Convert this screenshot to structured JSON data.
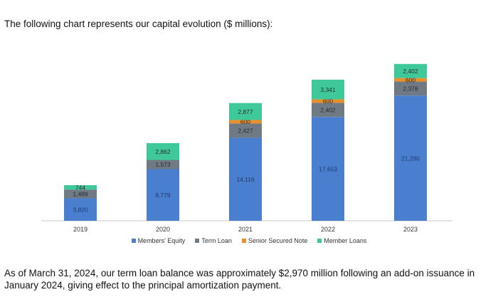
{
  "intro_text": "The following chart represents our capital evolution ($ millions):",
  "footnote_text": "As of March 31, 2024, our term loan balance was approximately $2,970 million following an add-on issuance in January 2024, giving effect to the principal amortization payment.",
  "chart_data": {
    "type": "bar",
    "stacked": true,
    "title": "",
    "xlabel": "",
    "ylabel": "",
    "categories": [
      "2019",
      "2020",
      "2021",
      "2022",
      "2023"
    ],
    "series": [
      {
        "name": "Members' Equity",
        "color": "#4a7fd0",
        "values": [
          3820,
          8779,
          14116,
          17653,
          21290
        ],
        "labels": [
          "3,820",
          "8,779",
          "14,116",
          "17,653",
          "21,290"
        ]
      },
      {
        "name": "Term Loan",
        "color": "#707a85",
        "values": [
          1489,
          1573,
          2427,
          2402,
          2378
        ],
        "labels": [
          "1,489",
          "1,573",
          "2,427",
          "2,402",
          "2,378"
        ]
      },
      {
        "name": "Senior Secured Note",
        "color": "#e8902c",
        "values": [
          0,
          0,
          600,
          600,
          600
        ],
        "labels": [
          "",
          "",
          "600",
          "600",
          "600"
        ]
      },
      {
        "name": "Member Loans",
        "color": "#3fc99b",
        "values": [
          744,
          2862,
          2877,
          3341,
          2402
        ],
        "labels": [
          "744",
          "2,862",
          "2,877",
          "3,341",
          "2,402"
        ]
      }
    ],
    "legend_position": "bottom",
    "grid": false
  }
}
